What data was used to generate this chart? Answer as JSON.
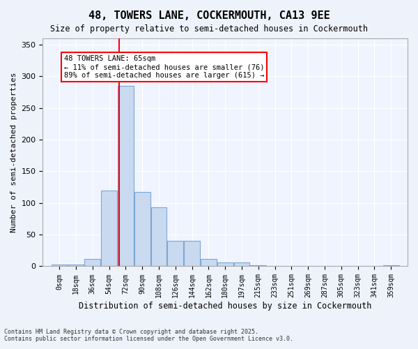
{
  "title": "48, TOWERS LANE, COCKERMOUTH, CA13 9EE",
  "subtitle": "Size of property relative to semi-detached houses in Cockermouth",
  "xlabel": "Distribution of semi-detached houses by size in Cockermouth",
  "ylabel": "Number of semi-detached properties",
  "bar_labels": [
    "0sqm",
    "18sqm",
    "36sqm",
    "54sqm",
    "72sqm",
    "90sqm",
    "108sqm",
    "126sqm",
    "144sqm",
    "162sqm",
    "180sqm",
    "197sqm",
    "215sqm",
    "233sqm",
    "251sqm",
    "269sqm",
    "287sqm",
    "305sqm",
    "323sqm",
    "341sqm",
    "359sqm"
  ],
  "bar_values": [
    3,
    3,
    11,
    120,
    285,
    117,
    93,
    40,
    40,
    12,
    6,
    6,
    2,
    0,
    0,
    0,
    0,
    1,
    0,
    0,
    2
  ],
  "bar_color": "#c9d9f0",
  "bar_edge_color": "#7ba7d4",
  "red_line_x": 65,
  "annotation_text": "48 TOWERS LANE: 65sqm\n← 11% of semi-detached houses are smaller (76)\n89% of semi-detached houses are larger (615) →",
  "ylim": [
    0,
    360
  ],
  "yticks": [
    0,
    50,
    100,
    150,
    200,
    250,
    300,
    350
  ],
  "footer_line1": "Contains HM Land Registry data © Crown copyright and database right 2025.",
  "footer_line2": "Contains public sector information licensed under the Open Government Licence v3.0.",
  "bg_color": "#eef2fb",
  "plot_bg_color": "#f0f4ff"
}
